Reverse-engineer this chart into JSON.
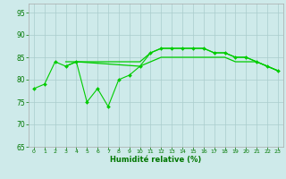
{
  "xlabel": "Humidité relative (%)",
  "background_color": "#ceeaea",
  "grid_color": "#aacccc",
  "line_color": "#00cc00",
  "line1_x": [
    0,
    1,
    2,
    3,
    4,
    5,
    6,
    7,
    8,
    9,
    10,
    11,
    12,
    13,
    14,
    15,
    16,
    17,
    18,
    19,
    20,
    21,
    22,
    23
  ],
  "line1_y": [
    78,
    79,
    84,
    83,
    84,
    75,
    78,
    74,
    80,
    81,
    83,
    86,
    87,
    87,
    87,
    87,
    87,
    86,
    86,
    85,
    85,
    84,
    83,
    82
  ],
  "line2_x": [
    3,
    4,
    10,
    11,
    12,
    13,
    14,
    15,
    16,
    17,
    18,
    19,
    20,
    21,
    22,
    23
  ],
  "line2_y": [
    84,
    84,
    84,
    86,
    87,
    87,
    87,
    87,
    87,
    86,
    86,
    85,
    85,
    84,
    83,
    82
  ],
  "line3_x": [
    3,
    4,
    10,
    11,
    12,
    13,
    14,
    15,
    16,
    17,
    18,
    19,
    20,
    21,
    22,
    23
  ],
  "line3_y": [
    83,
    84,
    83,
    84,
    85,
    85,
    85,
    85,
    85,
    85,
    85,
    84,
    84,
    84,
    83,
    82
  ],
  "ylim": [
    65,
    97
  ],
  "xlim": [
    -0.5,
    23.5
  ],
  "yticks": [
    65,
    70,
    75,
    80,
    85,
    90,
    95
  ],
  "xticks": [
    0,
    1,
    2,
    3,
    4,
    5,
    6,
    7,
    8,
    9,
    10,
    11,
    12,
    13,
    14,
    15,
    16,
    17,
    18,
    19,
    20,
    21,
    22,
    23
  ]
}
